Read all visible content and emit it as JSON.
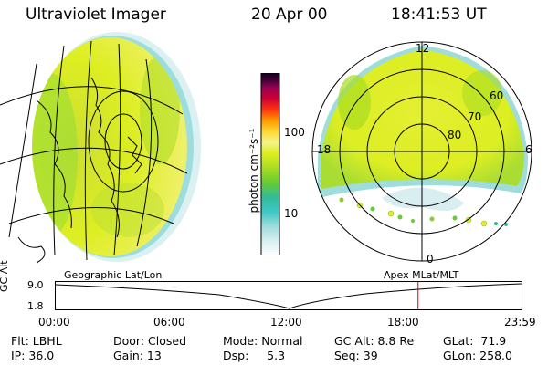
{
  "header": {
    "instrument": "Ultraviolet Imager",
    "date": "20 Apr 00",
    "time": "18:41:53 UT"
  },
  "colorbar": {
    "unit_label": "photon cm⁻²s⁻¹",
    "tick_100": "100",
    "tick_10": "10",
    "colors": [
      "#ffffff",
      "#d8eef0",
      "#9fdcdc",
      "#3dc6c6",
      "#33bb99",
      "#66cc33",
      "#aadd22",
      "#ddee22",
      "#f4f488",
      "#ffd633",
      "#ff9900",
      "#ff3311",
      "#cc0033",
      "#990055",
      "#440033",
      "#110022"
    ]
  },
  "left_panel": {
    "label": "Geographic Lat/Lon"
  },
  "right_panel": {
    "label": "Apex MLat/MLT",
    "mlt_12": "12",
    "mlt_18": "18",
    "mlt_6": "6",
    "mlt_0": "0",
    "lat_60": "60",
    "lat_70": "70",
    "lat_80": "80"
  },
  "timeline": {
    "y_axis_label": "GC Alt",
    "y_top": "9.0",
    "y_bottom": "1.8",
    "ticks": [
      "00:00",
      "06:00",
      "12:00",
      "18:00",
      "23:59"
    ],
    "current_time_fraction": 0.778
  },
  "info": {
    "flt": "Flt: LBHL",
    "ip": "IP: 36.0",
    "door": "Door: Closed",
    "gain": "Gain: 13",
    "mode": "Mode: Normal",
    "dsp": "Dsp:     5.3",
    "gcalt": "GC Alt: 8.8 Re",
    "seq": "Seq: 39",
    "glat": "GLat:  71.9",
    "glon": "GLon: 258.0"
  }
}
